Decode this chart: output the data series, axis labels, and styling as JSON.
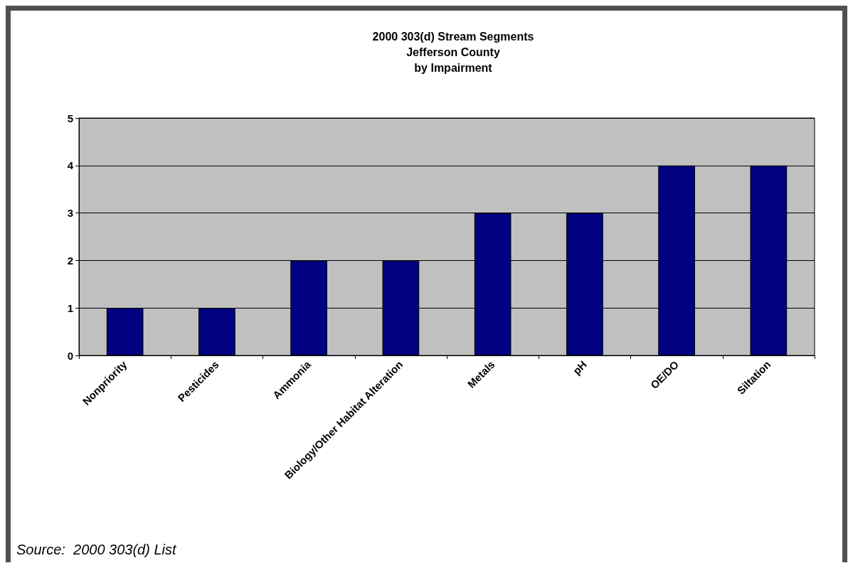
{
  "chart_data": {
    "type": "bar",
    "title": "2000 303(d) Stream Segments\nJefferson County\nby Impairment",
    "categories": [
      "Nonpriority",
      "Pesticides",
      "Ammonia",
      "Biology/Other Habitat Alteration",
      "Metals",
      "pH",
      "OE/DO",
      "Siltation"
    ],
    "values": [
      1,
      1,
      2,
      2,
      3,
      3,
      4,
      4
    ],
    "color": "#000080",
    "ylim": [
      0,
      5
    ],
    "yticks": [
      0,
      1,
      2,
      3,
      4,
      5
    ],
    "grid": "y",
    "annotations": [
      "Source:  2000 303(d) List"
    ]
  }
}
